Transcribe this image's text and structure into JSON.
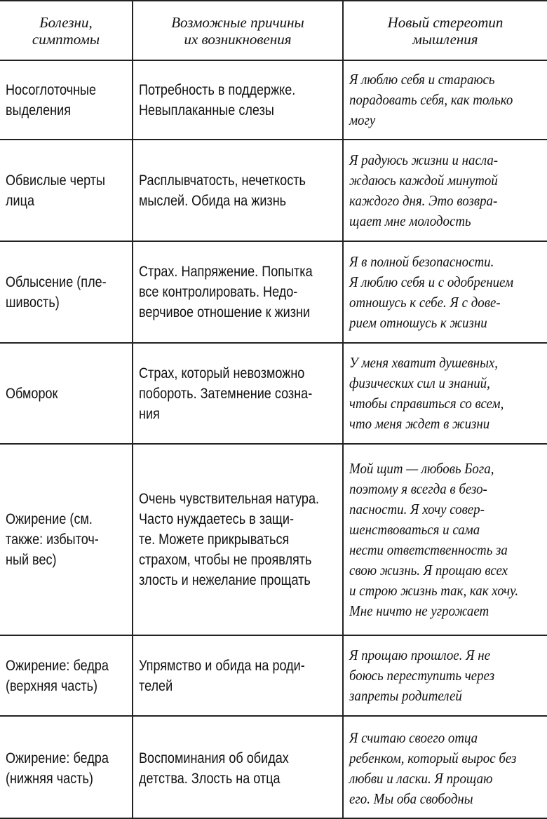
{
  "table": {
    "header": [
      [
        "Болезни,",
        "симптомы"
      ],
      [
        "Возможные причины",
        "их возникновения"
      ],
      [
        "Новый стереотип",
        "мышления"
      ]
    ],
    "rows": [
      [
        [
          "Носоглоточные",
          "выделения"
        ],
        [
          "Потребность в поддержке.",
          "Невыплаканные слезы"
        ],
        [
          "Я люблю себя и стараюсь",
          "порадовать себя, как только",
          "могу"
        ]
      ],
      [
        [
          "Обвислые черты",
          "лица"
        ],
        [
          "Расплывчатость, нечеткость",
          "мыслей. Обида на жизнь"
        ],
        [
          "Я радуюсь жизни и насла-",
          "ждаюсь каждой минутой",
          "каждого дня. Это возвра-",
          "щает мне молодость"
        ]
      ],
      [
        [
          "Облысение (пле-",
          "шивость)"
        ],
        [
          "Страх. Напряжение. Попытка",
          "все контролировать. Недо-",
          "верчивое отношение к жизни"
        ],
        [
          "Я в полной безопасности.",
          "Я люблю себя и с одобрением",
          "отношусь к себе. Я с дове-",
          "рием отношусь к жизни"
        ]
      ],
      [
        [
          "Обморок"
        ],
        [
          "Страх, который невозможно",
          "побороть. Затемнение созна-",
          "ния"
        ],
        [
          "У меня хватит душевных,",
          "физических сил и знаний,",
          "чтобы справиться со всем,",
          "что меня ждет в жизни"
        ]
      ],
      [
        [
          "Ожирение (см.",
          "также: избыточ-",
          "ный вес)"
        ],
        [
          "Очень чувствительная натура.",
          "Часто нуждаетесь в защи-",
          "те. Можете прикрываться",
          "страхом, чтобы не проявлять",
          "злость и нежелание прощать"
        ],
        [
          "Мой щит — любовь Бога,",
          "поэтому я всегда в безо-",
          "пасности. Я хочу совер-",
          "шенствоваться и сама",
          "нести ответственность за",
          "свою жизнь. Я прощаю всех",
          "и строю жизнь так, как хочу.",
          "Мне ничто не угрожает"
        ]
      ],
      [
        [
          "Ожирение: бедра",
          "(верхняя часть)"
        ],
        [
          "Упрямство и обида на роди-",
          "телей"
        ],
        [
          "Я прощаю прошлое. Я не",
          "боюсь переступить через",
          "запреты родителей"
        ]
      ],
      [
        [
          "Ожирение: бедра",
          "(нижняя часть)"
        ],
        [
          "Воспоминания об обидах",
          "детства. Злость на отца"
        ],
        [
          "Я считаю своего отца",
          "ребенком, который вырос без",
          "любви и ласки. Я прощаю",
          "его. Мы оба свободны"
        ]
      ]
    ]
  }
}
